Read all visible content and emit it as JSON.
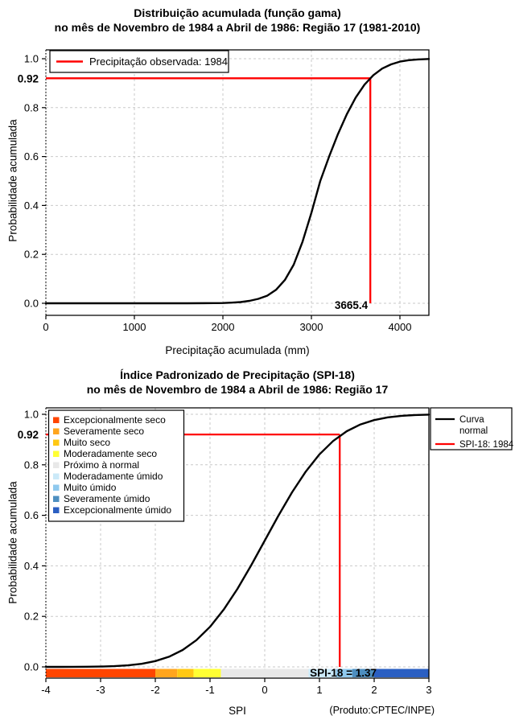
{
  "page": {
    "background": "#ffffff"
  },
  "highlight_color": "#ff0000",
  "chart_data": [
    {
      "type": "line",
      "title": "Distribuição acumulada (função gama)",
      "subtitle": "no mês de Novembro de 1984 a Abril de 1986: Região 17 (1981-2010)",
      "xlabel": "Precipitação acumulada (mm)",
      "ylabel": "Probabilidade acumulada",
      "xlim": [
        0,
        4327
      ],
      "ylim": [
        0,
        1
      ],
      "x_ticks": [
        0,
        1000,
        2000,
        3000,
        4000
      ],
      "y_ticks": [
        0,
        0.2,
        0.4,
        0.6,
        0.8,
        1
      ],
      "grid": true,
      "legend": {
        "position": "top-left",
        "items": [
          {
            "label": "Precipitação observada: 1984",
            "color": "#ff0000"
          }
        ]
      },
      "series": [
        {
          "name": "Distribuição gama acumulada",
          "color": "#000000",
          "x": [
            0,
            400,
            800,
            1200,
            1600,
            1900,
            2000,
            2100,
            2200,
            2300,
            2400,
            2500,
            2600,
            2700,
            2800,
            2900,
            3000,
            3100,
            3200,
            3300,
            3400,
            3500,
            3600,
            3700,
            3800,
            3900,
            4000,
            4100,
            4200,
            4327
          ],
          "y": [
            0,
            0,
            0,
            0,
            0,
            0.0005,
            0.001,
            0.0025,
            0.005,
            0.01,
            0.018,
            0.031,
            0.055,
            0.095,
            0.158,
            0.252,
            0.37,
            0.5,
            0.6,
            0.692,
            0.773,
            0.841,
            0.894,
            0.933,
            0.96,
            0.977,
            0.988,
            0.994,
            0.997,
            0.999
          ]
        }
      ],
      "annotation": {
        "x": 3665.4,
        "y": 0.92,
        "x_label": "3665.4",
        "y_label": "0.92",
        "color": "#ff0000"
      }
    },
    {
      "type": "line",
      "title": "Índice Padronizado de Precipitação (SPI-18)",
      "subtitle": "no mês de Novembro de 1984 a Abril de 1986: Região 17",
      "xlabel": "SPI",
      "ylabel": "Probabilidade acumulada",
      "xlim": [
        -4,
        3
      ],
      "ylim": [
        0,
        1
      ],
      "x_ticks": [
        -4,
        -3,
        -2,
        -1,
        0,
        1,
        2,
        3
      ],
      "y_ticks": [
        0,
        0.2,
        0.4,
        0.6,
        0.8,
        1
      ],
      "grid": true,
      "category_legend": {
        "position": "top-left",
        "items": [
          {
            "label": "Excepcionalmente seco",
            "color": "#ff4500"
          },
          {
            "label": "Severamente seco",
            "color": "#ffa51e"
          },
          {
            "label": "Muito seco",
            "color": "#ffc814"
          },
          {
            "label": "Moderadamente seco",
            "color": "#ffff33"
          },
          {
            "label": "Próximo à normal",
            "color": "#e8e8e8"
          },
          {
            "label": "Moderadamente úmido",
            "color": "#cbe9f8"
          },
          {
            "label": "Muito úmido",
            "color": "#8fc9ee"
          },
          {
            "label": "Severamente úmido",
            "color": "#4e8fc0"
          },
          {
            "label": "Excepcionalmente úmido",
            "color": "#2b5fc2"
          }
        ]
      },
      "line_legend": {
        "position": "top-right",
        "items": [
          {
            "label": "Curva normal",
            "label_lines": [
              "Curva",
              "normal"
            ],
            "color": "#000000"
          },
          {
            "label": "SPI-18: 1984",
            "label_lines": [
              "SPI-18: 1984"
            ],
            "color": "#ff0000"
          }
        ]
      },
      "colorbar": [
        {
          "from": -4,
          "to": -2,
          "color": "#ff4500"
        },
        {
          "from": -2,
          "to": -1.6,
          "color": "#ffa51e"
        },
        {
          "from": -1.6,
          "to": -1.3,
          "color": "#ffc814"
        },
        {
          "from": -1.3,
          "to": -0.8,
          "color": "#ffff33"
        },
        {
          "from": -0.8,
          "to": 0.8,
          "color": "#e8e8e8"
        },
        {
          "from": 0.8,
          "to": 1.3,
          "color": "#cbe9f8"
        },
        {
          "from": 1.3,
          "to": 1.6,
          "color": "#8fc9ee"
        },
        {
          "from": 1.6,
          "to": 2,
          "color": "#4e8fc0"
        },
        {
          "from": 2,
          "to": 3,
          "color": "#2b5fc2"
        }
      ],
      "series": [
        {
          "name": "Curva normal",
          "color": "#000000",
          "x": [
            -4,
            -3.75,
            -3.5,
            -3.25,
            -3,
            -2.75,
            -2.5,
            -2.25,
            -2,
            -1.75,
            -1.5,
            -1.25,
            -1,
            -0.75,
            -0.5,
            -0.25,
            0,
            0.25,
            0.5,
            0.75,
            1,
            1.25,
            1.5,
            1.75,
            2,
            2.25,
            2.5,
            2.75,
            3
          ],
          "y": [
            0,
            0.0001,
            0.0002,
            0.0006,
            0.0013,
            0.003,
            0.0062,
            0.0122,
            0.0228,
            0.0401,
            0.0668,
            0.1056,
            0.1587,
            0.2266,
            0.3085,
            0.4013,
            0.5,
            0.5987,
            0.6915,
            0.7734,
            0.8413,
            0.8944,
            0.9332,
            0.9599,
            0.9772,
            0.9878,
            0.9938,
            0.997,
            0.9987
          ]
        }
      ],
      "annotation": {
        "x": 1.37,
        "y": 0.92,
        "value_label": "SPI-18 = 1.37",
        "y_label": "0.92",
        "color": "#ff0000"
      },
      "footnote": "(Produto:CPTEC/INPE)"
    }
  ]
}
